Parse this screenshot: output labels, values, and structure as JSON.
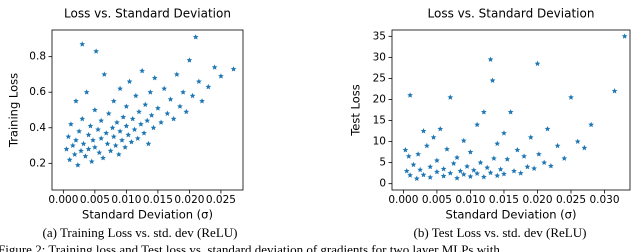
{
  "chart_data": [
    {
      "type": "scatter",
      "title": "Loss vs. Standard Deviation",
      "xlabel": "Standard Deviation (σ)",
      "ylabel": "Training Loss",
      "color": "#1f77b4",
      "xlim": [
        -0.0018,
        0.0285
      ],
      "ylim": [
        0.05,
        0.95
      ],
      "xticks": [
        {
          "value": 0,
          "label": "0.000"
        },
        {
          "value": 0.005,
          "label": "0.005"
        },
        {
          "value": 0.01,
          "label": "0.010"
        },
        {
          "value": 0.015,
          "label": "0.015"
        },
        {
          "value": 0.02,
          "label": "0.020"
        },
        {
          "value": 0.025,
          "label": "0.025"
        }
      ],
      "yticks": [
        0.2,
        0.4,
        0.6,
        0.8
      ],
      "x": [
        0.0005,
        0.0008,
        0.001,
        0.0012,
        0.0015,
        0.0018,
        0.002,
        0.002,
        0.0023,
        0.0025,
        0.0028,
        0.003,
        0.003,
        0.0032,
        0.0035,
        0.0037,
        0.004,
        0.004,
        0.0043,
        0.0045,
        0.0047,
        0.005,
        0.005,
        0.0052,
        0.0055,
        0.0057,
        0.006,
        0.006,
        0.0063,
        0.0065,
        0.0068,
        0.007,
        0.0072,
        0.0075,
        0.0078,
        0.008,
        0.008,
        0.0083,
        0.0085,
        0.0088,
        0.009,
        0.009,
        0.0093,
        0.0095,
        0.0098,
        0.01,
        0.01,
        0.0103,
        0.0105,
        0.0108,
        0.011,
        0.0113,
        0.0115,
        0.0118,
        0.012,
        0.0123,
        0.0125,
        0.0128,
        0.013,
        0.0133,
        0.0135,
        0.0138,
        0.014,
        0.0143,
        0.0145,
        0.015,
        0.0155,
        0.016,
        0.0165,
        0.017,
        0.0175,
        0.018,
        0.0185,
        0.019,
        0.0195,
        0.02,
        0.0205,
        0.021,
        0.0215,
        0.022,
        0.023,
        0.024,
        0.025,
        0.027
      ],
      "y": [
        0.28,
        0.35,
        0.22,
        0.42,
        0.3,
        0.25,
        0.55,
        0.33,
        0.19,
        0.38,
        0.27,
        0.87,
        0.45,
        0.31,
        0.24,
        0.6,
        0.36,
        0.28,
        0.41,
        0.21,
        0.33,
        0.5,
        0.29,
        0.83,
        0.39,
        0.26,
        0.44,
        0.34,
        0.23,
        0.7,
        0.37,
        0.31,
        0.48,
        0.27,
        0.4,
        0.35,
        0.55,
        0.3,
        0.43,
        0.25,
        0.38,
        0.62,
        0.33,
        0.46,
        0.29,
        0.41,
        0.52,
        0.36,
        0.66,
        0.32,
        0.45,
        0.39,
        0.58,
        0.34,
        0.49,
        0.42,
        0.72,
        0.37,
        0.53,
        0.44,
        0.31,
        0.6,
        0.47,
        0.4,
        0.68,
        0.51,
        0.43,
        0.62,
        0.48,
        0.56,
        0.45,
        0.7,
        0.52,
        0.6,
        0.49,
        0.78,
        0.58,
        0.91,
        0.66,
        0.55,
        0.63,
        0.74,
        0.69,
        0.73
      ]
    },
    {
      "type": "scatter",
      "title": "Loss vs. Standard Deviation",
      "xlabel": "Standard Deviation (σ)",
      "ylabel": "Test Loss",
      "color": "#1f77b4",
      "xlim": [
        -0.0017,
        0.0338
      ],
      "ylim": [
        -1.5,
        36.5
      ],
      "xticks": [
        {
          "value": 0,
          "label": "0.000"
        },
        {
          "value": 0.005,
          "label": "0.005"
        },
        {
          "value": 0.01,
          "label": "0.010"
        },
        {
          "value": 0.015,
          "label": "0.015"
        },
        {
          "value": 0.02,
          "label": "0.020"
        },
        {
          "value": 0.025,
          "label": "0.025"
        },
        {
          "value": 0.03,
          "label": "0.030"
        }
      ],
      "yticks": [
        0,
        5,
        10,
        15,
        20,
        25,
        30,
        35
      ],
      "x": [
        0.0003,
        0.0005,
        0.0008,
        0.001,
        0.001,
        0.0015,
        0.002,
        0.0022,
        0.0025,
        0.003,
        0.003,
        0.0035,
        0.004,
        0.004,
        0.0045,
        0.005,
        0.005,
        0.0055,
        0.006,
        0.006,
        0.0065,
        0.007,
        0.007,
        0.0075,
        0.008,
        0.008,
        0.0085,
        0.009,
        0.009,
        0.0095,
        0.01,
        0.01,
        0.0105,
        0.011,
        0.011,
        0.0115,
        0.012,
        0.012,
        0.0125,
        0.013,
        0.013,
        0.0133,
        0.0135,
        0.014,
        0.014,
        0.0145,
        0.015,
        0.015,
        0.0155,
        0.016,
        0.0165,
        0.017,
        0.0175,
        0.018,
        0.0185,
        0.019,
        0.0195,
        0.02,
        0.0202,
        0.021,
        0.0215,
        0.022,
        0.023,
        0.024,
        0.025,
        0.026,
        0.027,
        0.028,
        0.0315,
        0.033
      ],
      "y": [
        8,
        3,
        6.5,
        21,
        2,
        4.5,
        1.2,
        7,
        3.3,
        12.5,
        2.1,
        9,
        4,
        1.5,
        11,
        2.8,
        5.5,
        13,
        3.5,
        1.8,
        8.2,
        2.5,
        20.5,
        4.8,
        1.3,
        6.2,
        3,
        10.2,
        2.2,
        4.1,
        1.7,
        7.5,
        3.2,
        14,
        2.4,
        5,
        1.6,
        17,
        3.8,
        29.5,
        2.6,
        24.5,
        6,
        1.9,
        9.5,
        3.4,
        12,
        2.3,
        5.8,
        17,
        3,
        8,
        2.5,
        6.5,
        4,
        11,
        3.6,
        28.5,
        7,
        5,
        13,
        4.2,
        9,
        6,
        20.5,
        10,
        8.5,
        14,
        22,
        35
      ]
    }
  ],
  "captions": [
    "(a) Training Loss vs. std. dev (ReLU)",
    "(b) Test Loss vs. std. dev (ReLU)"
  ],
  "figure_caption": "Figure 2: Training loss and Test loss vs. standard deviation of gradients for two layer MLPs with"
}
